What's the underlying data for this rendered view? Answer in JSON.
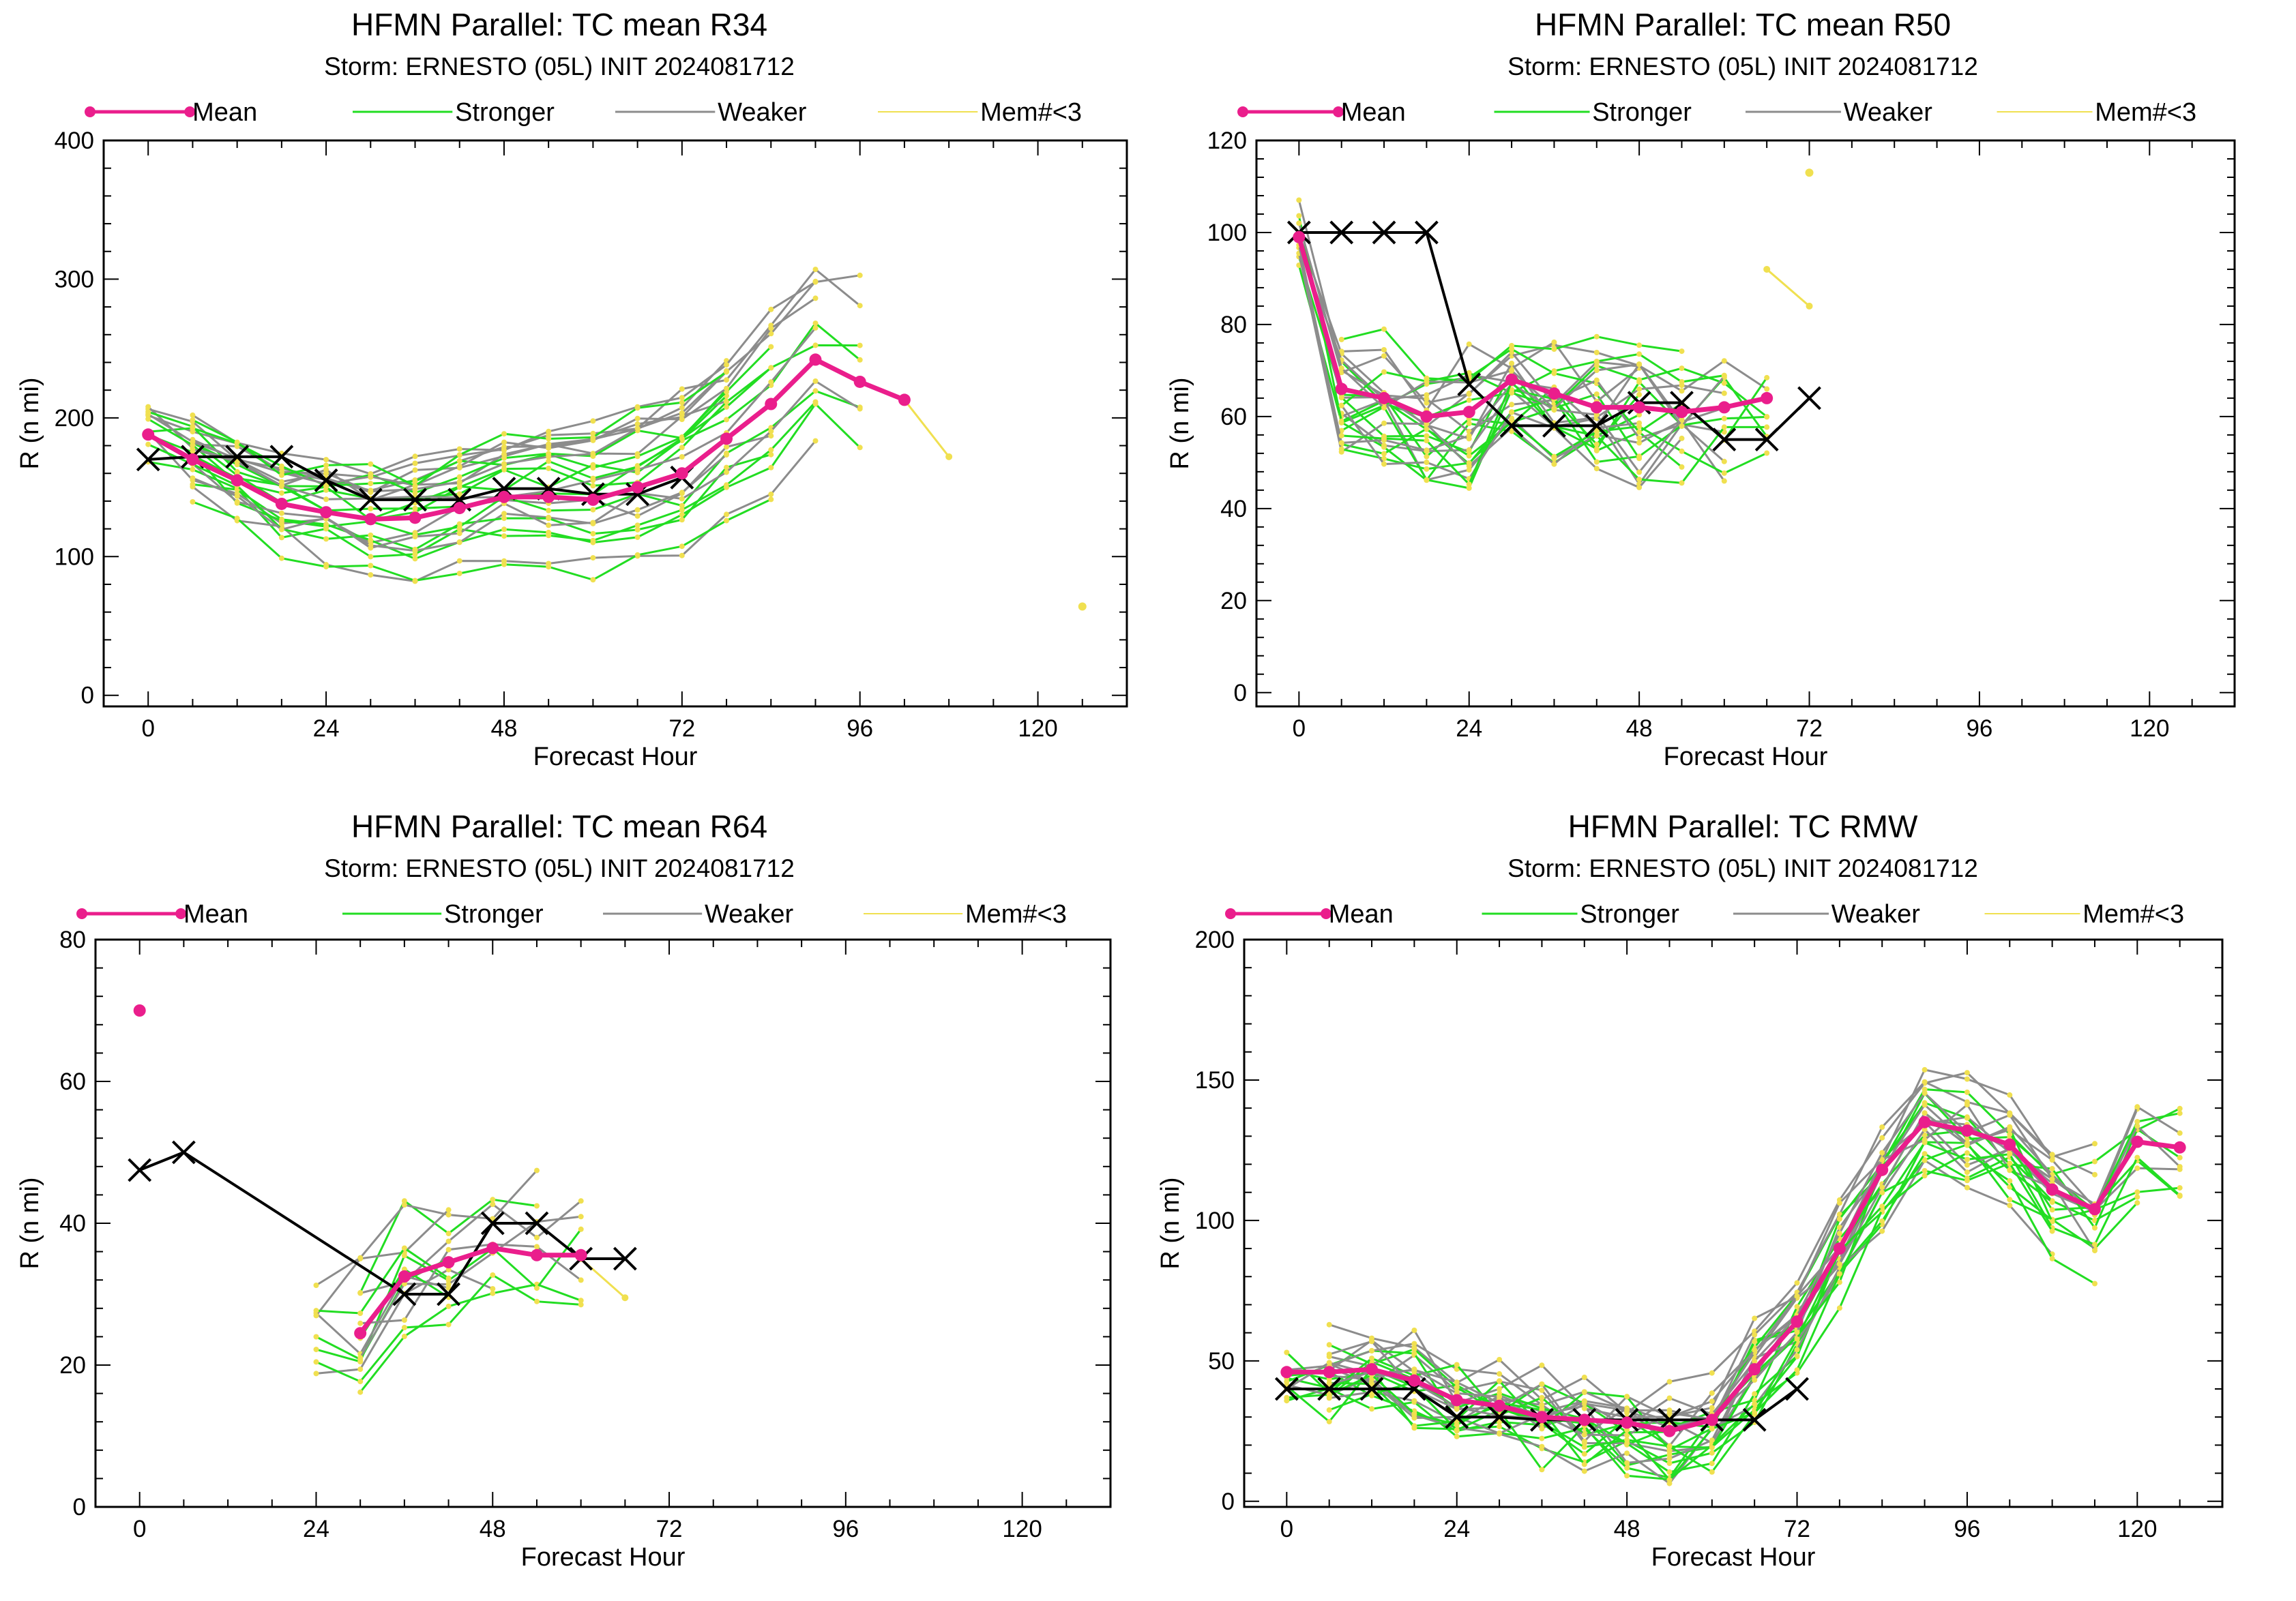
{
  "colors": {
    "mean": "#ea1e8c",
    "stronger": "#22dd22",
    "weaker": "#8c8c8c",
    "mem_lt3": "#f0e050",
    "best_track": "#000000"
  },
  "legend": [
    "Mean",
    "Stronger",
    "Weaker",
    "Mem#<3"
  ],
  "chart_data": [
    {
      "type": "line",
      "title": "HFMN Parallel: TC mean R34",
      "subtitle": "Storm: ERNESTO (05L) INIT 2024081712",
      "xlabel": "Forecast Hour",
      "ylabel": "R (n mi)",
      "xlim": [
        -6,
        132
      ],
      "ylim": [
        -8,
        400
      ],
      "xticks": [
        0,
        24,
        48,
        72,
        96,
        120
      ],
      "yticks": [
        0,
        100,
        200,
        300,
        400
      ],
      "series": [
        {
          "name": "Mean",
          "x": [
            0,
            6,
            12,
            18,
            24,
            30,
            36,
            42,
            48,
            54,
            60,
            66,
            72,
            78,
            84,
            90,
            96,
            102
          ],
          "y": [
            188,
            170,
            155,
            138,
            132,
            127,
            128,
            135,
            143,
            143,
            141,
            150,
            160,
            185,
            210,
            242,
            226,
            213
          ]
        },
        {
          "name": "Mem#<3",
          "x": [
            102,
            108
          ],
          "y": [
            213,
            172
          ]
        }
      ],
      "best_track": {
        "x": [
          0,
          6,
          12,
          18,
          24,
          30,
          36,
          42,
          48,
          54,
          60,
          66,
          72
        ],
        "y": [
          170,
          172,
          172,
          172,
          155,
          141,
          141,
          141,
          149,
          149,
          145,
          145,
          157
        ]
      },
      "isolated_points": [
        {
          "x": 126,
          "y": 64
        }
      ],
      "ensemble": {
        "x0": 0,
        "dt": 6,
        "n": 24,
        "npts": 17,
        "start": 0,
        "base": "mean",
        "spread": 20,
        "spreadGrow": 2.6,
        "noise": 11,
        "seed": 11
      }
    },
    {
      "type": "line",
      "title": "HFMN Parallel: TC mean R50",
      "subtitle": "Storm: ERNESTO (05L) INIT 2024081712",
      "xlabel": "Forecast Hour",
      "ylabel": "R (n mi)",
      "xlim": [
        -6,
        132
      ],
      "ylim": [
        -3,
        120
      ],
      "xticks": [
        0,
        24,
        48,
        72,
        96,
        120
      ],
      "yticks": [
        0,
        20,
        40,
        60,
        80,
        100,
        120
      ],
      "series": [
        {
          "name": "Mean",
          "x": [
            0,
            6,
            12,
            18,
            24,
            30,
            36,
            42,
            48,
            54,
            60,
            66
          ],
          "y": [
            99,
            66,
            64,
            60,
            61,
            68,
            65,
            62,
            62,
            61,
            62,
            64
          ]
        },
        {
          "name": "Mem#<3",
          "x": [
            66,
            72
          ],
          "y": [
            92,
            84
          ]
        }
      ],
      "best_track": {
        "x": [
          0,
          6,
          12,
          18,
          24,
          30,
          36,
          42,
          48,
          54,
          60,
          66,
          72
        ],
        "y": [
          100,
          100,
          100,
          100,
          67,
          58,
          58,
          58,
          63,
          63,
          55,
          55,
          64
        ]
      },
      "isolated_points": [
        {
          "x": 72,
          "y": 113
        }
      ],
      "ensemble": {
        "x0": 0,
        "dt": 6,
        "n": 24,
        "npts": 12,
        "start": 0,
        "base": "mean",
        "spread": 9,
        "spreadGrow": 0.2,
        "noise": 8,
        "seed": 23
      }
    },
    {
      "type": "line",
      "title": "HFMN Parallel: TC mean R64",
      "subtitle": "Storm: ERNESTO (05L) INIT 2024081712",
      "xlabel": "Forecast Hour",
      "ylabel": "R (n mi)",
      "xlim": [
        -6,
        132
      ],
      "ylim": [
        0,
        80
      ],
      "xticks": [
        0,
        24,
        48,
        72,
        96,
        120
      ],
      "yticks": [
        0,
        20,
        40,
        60,
        80
      ],
      "series": [
        {
          "name": "Mean",
          "x": [
            30,
            36,
            42,
            48,
            54,
            60
          ],
          "y": [
            24.5,
            32.5,
            34.5,
            36.5,
            35.5,
            35.5
          ]
        },
        {
          "name": "Mem#<3",
          "x": [
            60,
            66
          ],
          "y": [
            35,
            29.5
          ]
        }
      ],
      "best_track": {
        "x": [
          0,
          6,
          36,
          42,
          48,
          54,
          60,
          66
        ],
        "y": [
          47.5,
          50,
          30,
          30,
          40,
          40,
          35,
          35
        ]
      },
      "isolated_points": [
        {
          "x": 0,
          "y": 70
        }
      ],
      "ensemble": {
        "x0": 24,
        "dt": 6,
        "n": 14,
        "npts": 7,
        "start": 0,
        "base": "mean",
        "spread": 7,
        "spreadGrow": 0.4,
        "noise": 5,
        "seed": 37
      }
    },
    {
      "type": "line",
      "title": "HFMN Parallel: TC RMW",
      "subtitle": "Storm: ERNESTO (05L) INIT 2024081712",
      "xlabel": "Forecast Hour",
      "ylabel": "R (n mi)",
      "xlim": [
        -6,
        132
      ],
      "ylim": [
        -2,
        200
      ],
      "xticks": [
        0,
        24,
        48,
        72,
        96,
        120
      ],
      "yticks": [
        0,
        50,
        100,
        150,
        200
      ],
      "series": [
        {
          "name": "Mean",
          "x": [
            0,
            6,
            12,
            18,
            24,
            30,
            36,
            42,
            48,
            54,
            60,
            66,
            72,
            78,
            84,
            90,
            96,
            102,
            108,
            114,
            120,
            126
          ],
          "y": [
            46,
            46,
            47,
            43,
            36,
            34,
            30,
            29,
            28,
            25,
            29,
            47,
            64,
            90,
            118,
            135,
            132,
            127,
            111,
            104,
            128,
            126
          ]
        }
      ],
      "best_track": {
        "x": [
          0,
          6,
          12,
          18,
          24,
          30,
          36,
          42,
          48,
          54,
          60,
          66,
          72
        ],
        "y": [
          40,
          40,
          40,
          40,
          30,
          30,
          29,
          29,
          29,
          29,
          29,
          29,
          40
        ]
      },
      "isolated_points": [],
      "ensemble": {
        "x0": 0,
        "dt": 6,
        "n": 24,
        "npts": 22,
        "start": 0,
        "base": "mean",
        "spread": 8,
        "spreadGrow": 1.4,
        "noise": 10,
        "seed": 53
      }
    }
  ]
}
